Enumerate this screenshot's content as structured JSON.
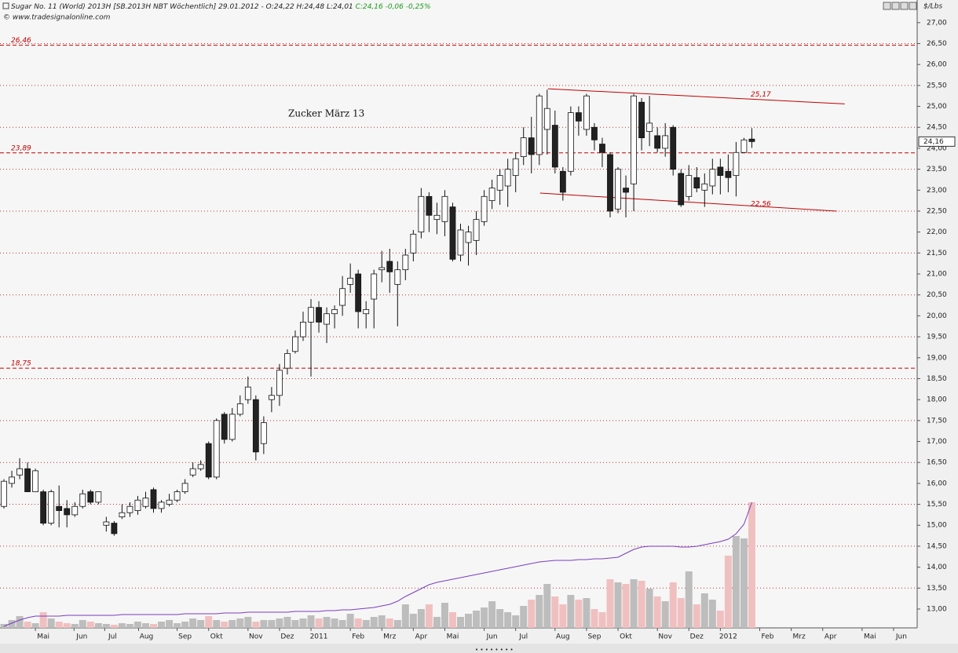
{
  "chart_data": {
    "type": "candlestick",
    "title": "Sugar No. 11 (World) 2013H [SB.2013H NBT Wöchentlich] 29.01.2012 - O:24,22 H:24,48 L:24,01",
    "title_change": "C:24,16 -0,06 -0,25%",
    "source": "© www.tradesignalonline.com",
    "annotation": "Zucker März 13",
    "y_axis_unit": "$/Lbs",
    "last_price": {
      "value": 24.16,
      "label": "24,16"
    },
    "ylim": [
      12.55,
      27.54
    ],
    "xlim": [
      -0.5,
      116
    ],
    "grid": true,
    "yticks": [
      {
        "value": 13,
        "label": "13,00"
      },
      {
        "value": 13.5,
        "label": "13,50"
      },
      {
        "value": 14,
        "label": "14,00"
      },
      {
        "value": 14.5,
        "label": "14,50"
      },
      {
        "value": 15,
        "label": "15,00"
      },
      {
        "value": 15.5,
        "label": "15,50"
      },
      {
        "value": 16,
        "label": "16,00"
      },
      {
        "value": 16.5,
        "label": "16,50"
      },
      {
        "value": 17,
        "label": "17,00"
      },
      {
        "value": 17.5,
        "label": "17,50"
      },
      {
        "value": 18,
        "label": "18,00"
      },
      {
        "value": 18.5,
        "label": "18,50"
      },
      {
        "value": 19,
        "label": "19,00"
      },
      {
        "value": 19.5,
        "label": "19,50"
      },
      {
        "value": 20,
        "label": "20,00"
      },
      {
        "value": 20.5,
        "label": "20,50"
      },
      {
        "value": 21,
        "label": "21,00"
      },
      {
        "value": 21.5,
        "label": "21,50"
      },
      {
        "value": 22,
        "label": "22,00"
      },
      {
        "value": 22.5,
        "label": "22,50"
      },
      {
        "value": 23,
        "label": "23,00"
      },
      {
        "value": 23.5,
        "label": "23,50"
      },
      {
        "value": 24,
        "label": "24,00"
      },
      {
        "value": 24.5,
        "label": "24,50"
      },
      {
        "value": 25,
        "label": "25,00"
      },
      {
        "value": 25.5,
        "label": "25,50"
      },
      {
        "value": 26,
        "label": "26,00"
      },
      {
        "value": 26.5,
        "label": "26,50"
      },
      {
        "value": 27,
        "label": "27,00"
      }
    ],
    "xticks": [
      {
        "value": 5,
        "label": "Mai"
      },
      {
        "value": 9.9,
        "label": "Jun"
      },
      {
        "value": 13.8,
        "label": "Jul"
      },
      {
        "value": 18.1,
        "label": "Aug"
      },
      {
        "value": 23,
        "label": "Sep"
      },
      {
        "value": 27,
        "label": "Okt"
      },
      {
        "value": 32,
        "label": "Nov"
      },
      {
        "value": 36,
        "label": "Dez"
      },
      {
        "value": 40,
        "label": "2011"
      },
      {
        "value": 45,
        "label": "Feb"
      },
      {
        "value": 49,
        "label": "Mrz"
      },
      {
        "value": 53,
        "label": "Apr"
      },
      {
        "value": 57,
        "label": "Mai"
      },
      {
        "value": 62,
        "label": "Jun"
      },
      {
        "value": 66,
        "label": "Jul"
      },
      {
        "value": 71,
        "label": "Aug"
      },
      {
        "value": 75,
        "label": "Sep"
      },
      {
        "value": 79,
        "label": "Okt"
      },
      {
        "value": 84,
        "label": "Nov"
      },
      {
        "value": 88,
        "label": "Dez"
      },
      {
        "value": 92,
        "label": "2012"
      },
      {
        "value": 97,
        "label": "Feb"
      },
      {
        "value": 101,
        "label": "Mrz"
      },
      {
        "value": 105,
        "label": "Apr"
      },
      {
        "value": 110,
        "label": "Mai"
      },
      {
        "value": 114,
        "label": "Jun"
      }
    ],
    "levels": [
      {
        "value": 26.46,
        "label": "26,46"
      },
      {
        "value": 23.89,
        "label": "23,89"
      },
      {
        "value": 18.75,
        "label": "18,75"
      }
    ],
    "trendlines": [
      {
        "x": [
          69.1,
          106.8
        ],
        "y": [
          25.42,
          25.06
        ],
        "label": {
          "value": 25.17,
          "label": "25,17"
        }
      },
      {
        "x": [
          68.1,
          105.8
        ],
        "y": [
          22.93,
          22.5
        ],
        "label": {
          "value": 22.56,
          "label": "22,56"
        }
      }
    ],
    "up_color": "#ffffff",
    "down_color": "#222222",
    "volume_up_color": "#bdbdbd",
    "volume_down_color": "#f0c0c0",
    "open_interest_color": "#7b3cc0",
    "level_color": "#c00000",
    "open": [
      15.45,
      16.0,
      16.2,
      16.35,
      15.8,
      15.8,
      15.05,
      15.45,
      15.4,
      15.25,
      15.45,
      15.8,
      15.55,
      15.0,
      15.05,
      15.2,
      15.3,
      15.35,
      15.45,
      15.85,
      15.4,
      15.5,
      15.6,
      15.8,
      16.2,
      16.35,
      16.95,
      16.15,
      17.65,
      17.05,
      17.65,
      18.0,
      18.0,
      16.95,
      18.0,
      18.1,
      18.75,
      19.15,
      19.5,
      19.85,
      20.2,
      19.8,
      20.05,
      20.25,
      20.75,
      21.0,
      20.05,
      20.4,
      21.1,
      21.3,
      20.75,
      21.1,
      21.5,
      22.0,
      22.85,
      22.3,
      22.25,
      22.6,
      21.45,
      21.75,
      21.8,
      22.25,
      22.75,
      23.0,
      23.1,
      23.35,
      23.8,
      24.25,
      23.85,
      24.45,
      24.55,
      23.45,
      23.45,
      24.85,
      24.45,
      24.5,
      24.1,
      23.85,
      22.55,
      23.05,
      23.15,
      25.1,
      24.4,
      24.3,
      24.0,
      24.5,
      23.4,
      22.85,
      23.3,
      23.0,
      23.1,
      23.55,
      23.45,
      23.35,
      23.9,
      24.22
    ],
    "high": [
      16.1,
      16.3,
      16.6,
      16.5,
      16.35,
      15.85,
      15.85,
      15.95,
      15.6,
      15.55,
      15.85,
      15.85,
      15.8,
      15.2,
      15.1,
      15.5,
      15.55,
      15.7,
      15.8,
      15.9,
      15.6,
      15.75,
      15.85,
      16.1,
      16.5,
      16.55,
      17.0,
      17.55,
      17.7,
      17.8,
      18.1,
      18.55,
      18.1,
      17.6,
      18.3,
      18.85,
      19.2,
      19.65,
      20.1,
      20.4,
      20.35,
      20.2,
      20.25,
      20.95,
      21.25,
      21.1,
      20.35,
      21.1,
      21.55,
      21.6,
      21.3,
      21.6,
      22.05,
      23.05,
      22.95,
      22.7,
      23.0,
      22.7,
      22.2,
      22.15,
      22.5,
      23.0,
      23.25,
      23.5,
      23.75,
      23.9,
      24.5,
      24.75,
      25.3,
      25.4,
      24.9,
      23.55,
      25.0,
      25.0,
      25.3,
      24.6,
      24.25,
      23.9,
      23.55,
      23.35,
      25.3,
      25.2,
      25.25,
      24.5,
      24.6,
      24.55,
      23.5,
      23.6,
      23.55,
      23.4,
      23.75,
      23.75,
      23.85,
      24.15,
      24.25,
      24.48
    ],
    "low": [
      15.4,
      15.9,
      16.1,
      15.8,
      15.8,
      15.0,
      15.0,
      14.95,
      14.95,
      15.2,
      15.4,
      15.5,
      15.5,
      14.85,
      14.75,
      15.15,
      15.2,
      15.25,
      15.4,
      15.3,
      15.3,
      15.45,
      15.55,
      15.75,
      16.15,
      16.3,
      16.1,
      16.1,
      16.95,
      17.0,
      17.6,
      17.9,
      16.55,
      16.7,
      17.7,
      17.85,
      18.6,
      19.1,
      19.4,
      18.55,
      19.6,
      19.35,
      19.7,
      20.0,
      20.55,
      19.7,
      19.7,
      19.7,
      20.8,
      20.55,
      19.75,
      20.85,
      21.3,
      21.85,
      22.0,
      21.95,
      21.9,
      21.3,
      21.3,
      21.2,
      21.45,
      22.15,
      22.55,
      22.65,
      22.6,
      22.95,
      23.6,
      23.4,
      23.6,
      23.85,
      23.4,
      22.75,
      23.35,
      24.3,
      24.3,
      23.95,
      23.55,
      22.35,
      22.45,
      22.35,
      22.5,
      23.95,
      24.05,
      23.9,
      23.8,
      23.35,
      22.6,
      22.75,
      22.95,
      22.6,
      22.9,
      22.9,
      22.95,
      22.85,
      23.9,
      24.01
    ],
    "close": [
      16.05,
      16.15,
      16.35,
      15.8,
      16.3,
      15.05,
      15.8,
      15.35,
      15.25,
      15.45,
      15.75,
      15.55,
      15.8,
      15.08,
      14.8,
      15.3,
      15.45,
      15.6,
      15.65,
      15.4,
      15.55,
      15.6,
      15.8,
      16.0,
      16.35,
      16.45,
      16.15,
      17.5,
      17.05,
      17.65,
      17.9,
      18.3,
      16.75,
      17.45,
      18.1,
      18.7,
      19.1,
      19.5,
      19.85,
      20.2,
      19.85,
      20.05,
      20.15,
      20.65,
      20.9,
      20.1,
      20.15,
      21.0,
      21.15,
      21.05,
      21.1,
      21.45,
      21.95,
      22.85,
      22.4,
      22.4,
      22.85,
      21.35,
      22.05,
      22.0,
      22.3,
      22.85,
      23.05,
      23.35,
      23.5,
      23.75,
      24.25,
      23.85,
      25.25,
      24.95,
      23.55,
      22.95,
      24.85,
      24.65,
      25.25,
      24.2,
      23.9,
      22.5,
      23.5,
      22.95,
      25.25,
      24.25,
      24.6,
      24.0,
      24.3,
      23.5,
      22.65,
      23.35,
      23.05,
      23.15,
      23.5,
      23.35,
      23.3,
      23.9,
      24.2,
      24.16
    ],
    "volume": [
      5,
      10,
      15,
      8,
      6,
      20,
      12,
      8,
      6,
      5,
      10,
      8,
      6,
      5,
      4,
      6,
      5,
      8,
      6,
      5,
      8,
      10,
      6,
      8,
      12,
      10,
      15,
      10,
      8,
      10,
      12,
      14,
      8,
      10,
      10,
      12,
      14,
      10,
      12,
      16,
      12,
      14,
      12,
      10,
      18,
      12,
      10,
      14,
      16,
      12,
      10,
      30,
      18,
      24,
      30,
      14,
      32,
      20,
      14,
      18,
      22,
      26,
      34,
      24,
      20,
      16,
      28,
      36,
      42,
      56,
      40,
      30,
      42,
      36,
      38,
      24,
      20,
      62,
      58,
      56,
      62,
      60,
      50,
      40,
      34,
      58,
      38,
      72,
      30,
      44,
      36,
      22,
      92,
      117,
      114,
      160
    ],
    "open_interest": [
      2,
      6,
      10,
      13,
      15,
      15,
      15,
      15,
      16,
      16,
      16,
      16,
      16,
      16,
      16,
      17,
      17,
      17,
      17,
      17,
      17,
      17,
      17,
      18,
      18,
      18,
      18,
      18,
      19,
      19,
      19,
      20,
      20,
      20,
      20,
      20,
      20,
      21,
      21,
      21,
      21,
      22,
      22,
      23,
      23,
      24,
      25,
      26,
      28,
      30,
      34,
      40,
      45,
      50,
      55,
      58,
      60,
      62,
      64,
      66,
      68,
      70,
      72,
      74,
      76,
      78,
      80,
      82,
      84,
      85,
      86,
      86,
      86,
      87,
      87,
      88,
      88,
      89,
      90,
      95,
      100,
      103,
      104,
      104,
      104,
      104,
      103,
      103,
      104,
      106,
      108,
      110,
      113,
      120,
      132,
      160
    ]
  }
}
